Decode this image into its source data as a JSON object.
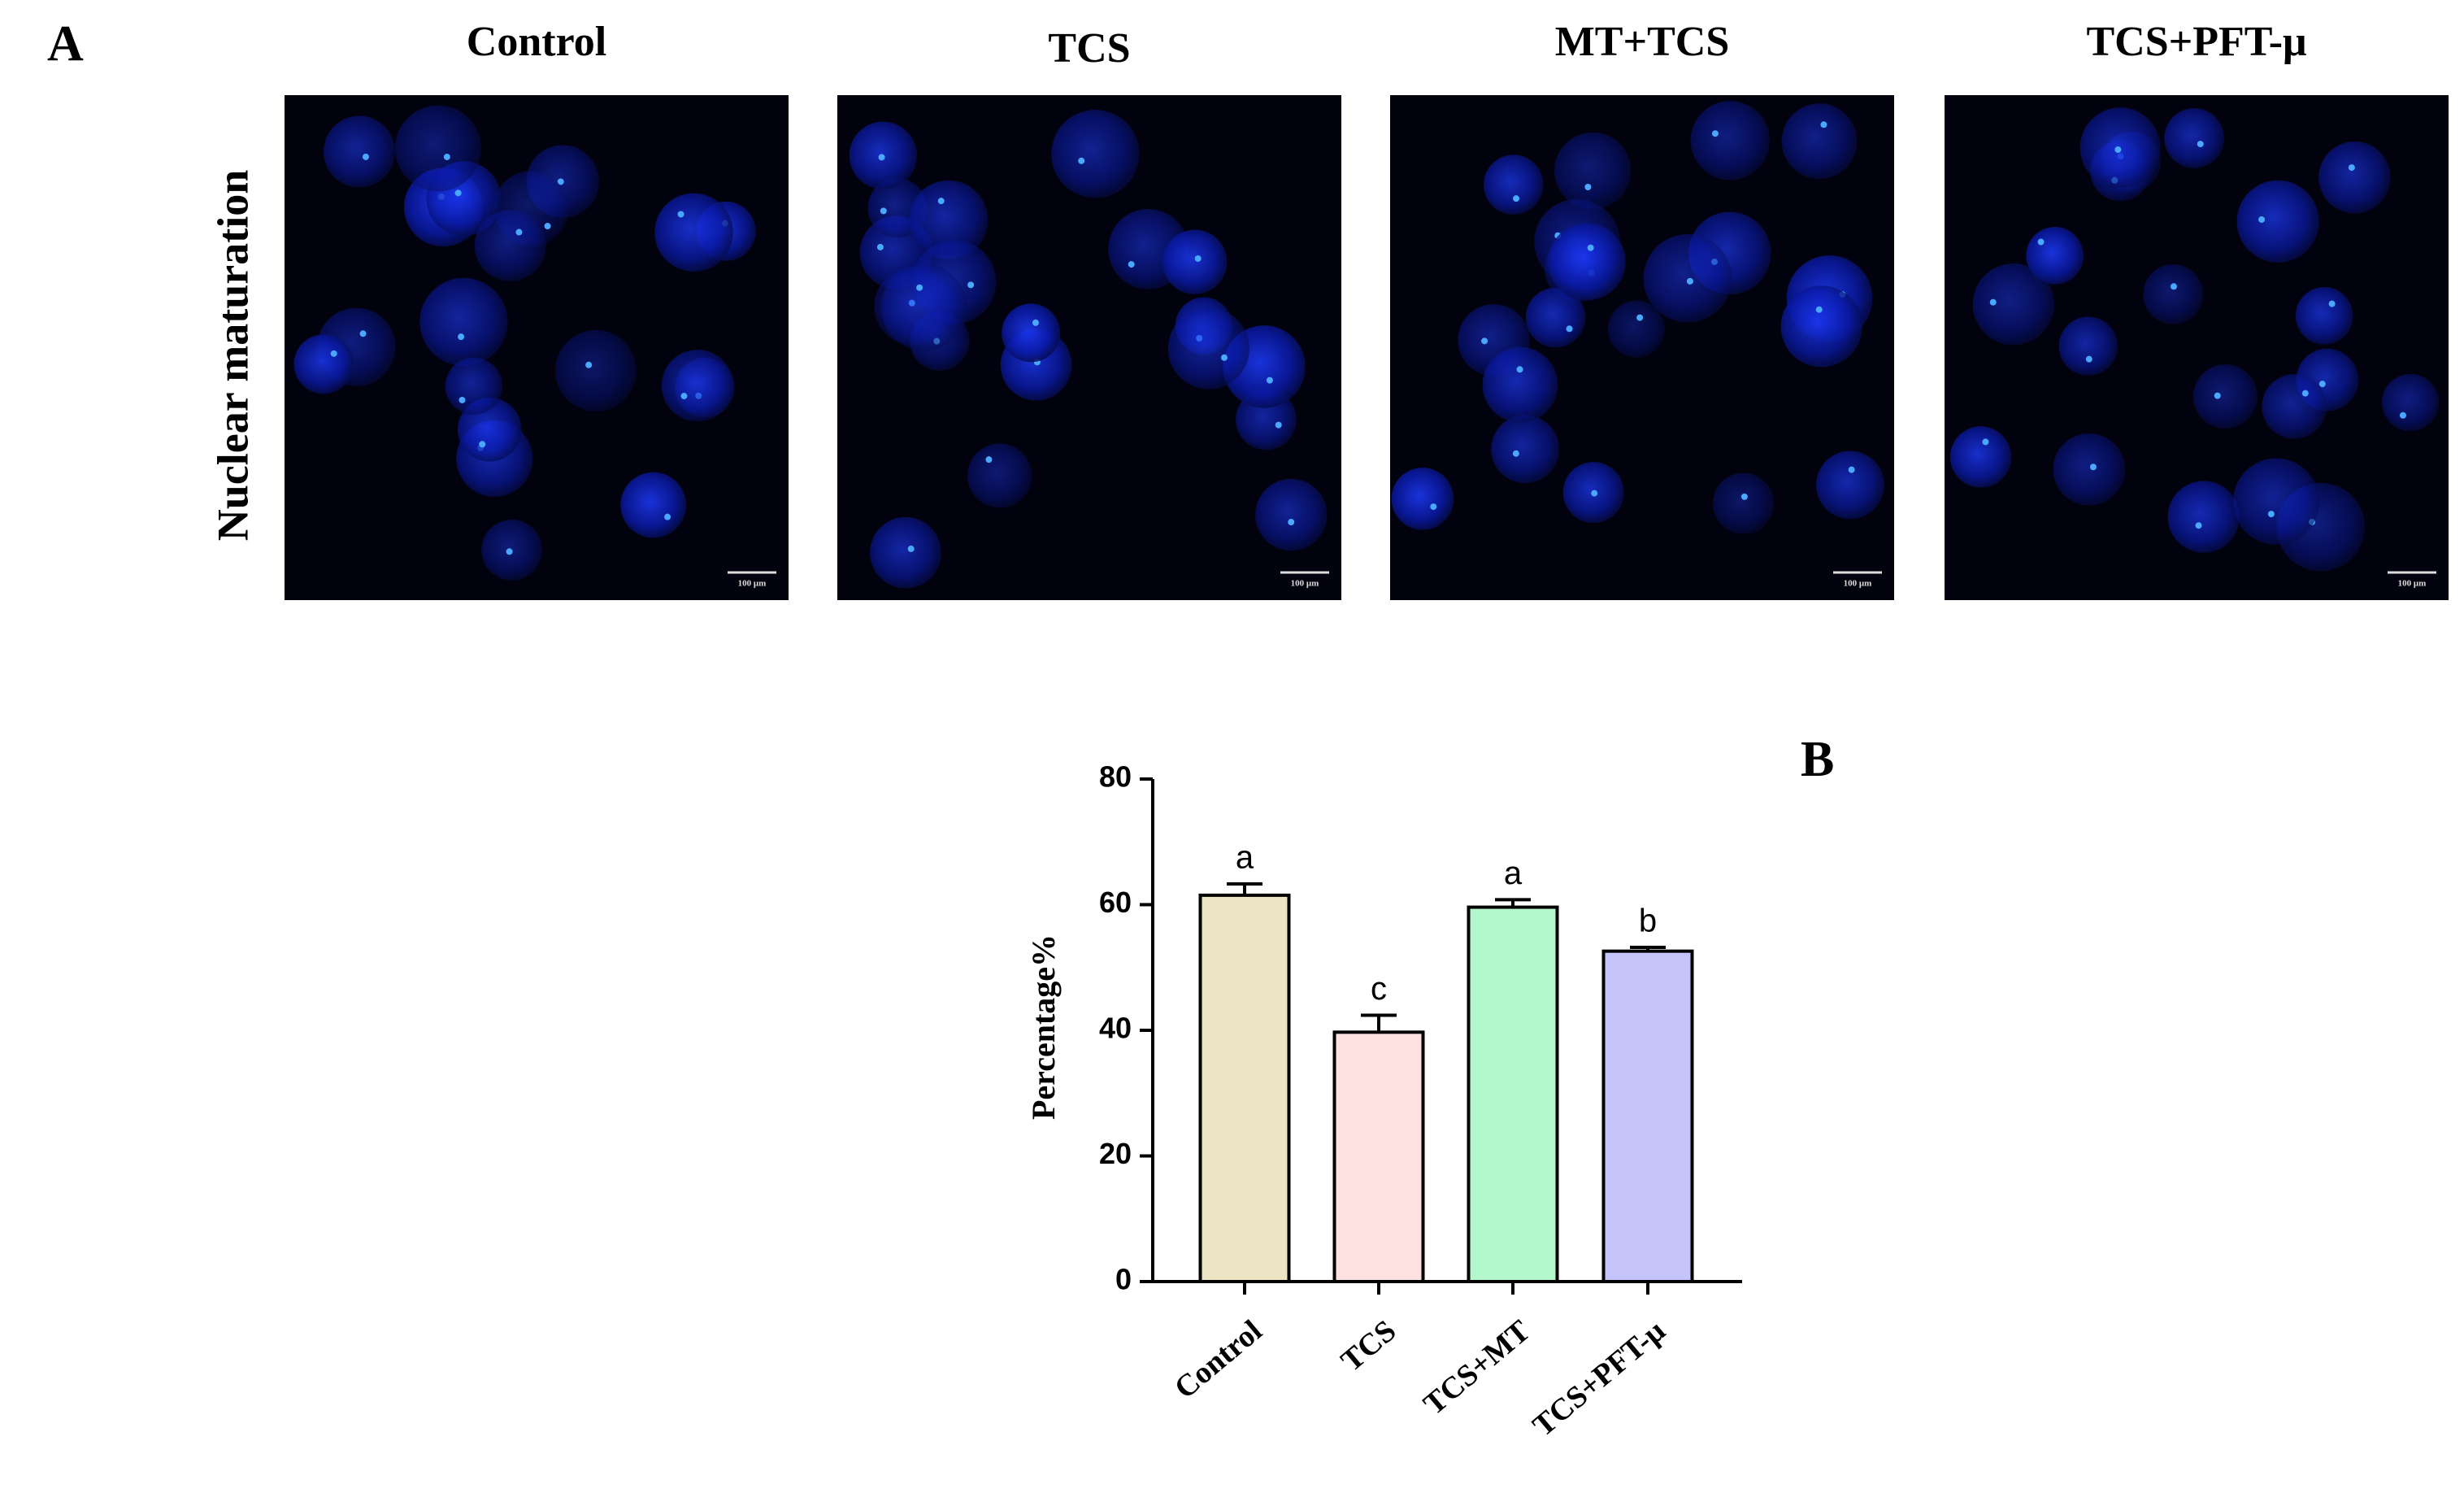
{
  "panel_a": {
    "label": "A",
    "row_label": "Nuclear maturation",
    "columns": [
      "Control",
      "TCS",
      "MT+TCS",
      "TCS+PFT-μ"
    ],
    "scale_bar": "100 μm"
  },
  "chart_data": {
    "type": "bar",
    "panel_label": "B",
    "ylabel": "Percentage%",
    "categories": [
      "Control",
      "TCS",
      "TCS+MT",
      "TCS+PFT-μ"
    ],
    "values": [
      61.5,
      39.7,
      59.6,
      52.6
    ],
    "errors": [
      1.8,
      2.7,
      1.2,
      0.6
    ],
    "annotations": [
      "a",
      "c",
      "a",
      "b"
    ],
    "colors": [
      "#ede4c4",
      "#fde0e0",
      "#b3f7cc",
      "#c4c4fb"
    ],
    "ylim": [
      0,
      80
    ],
    "yticks": [
      0,
      20,
      40,
      60,
      80
    ]
  }
}
